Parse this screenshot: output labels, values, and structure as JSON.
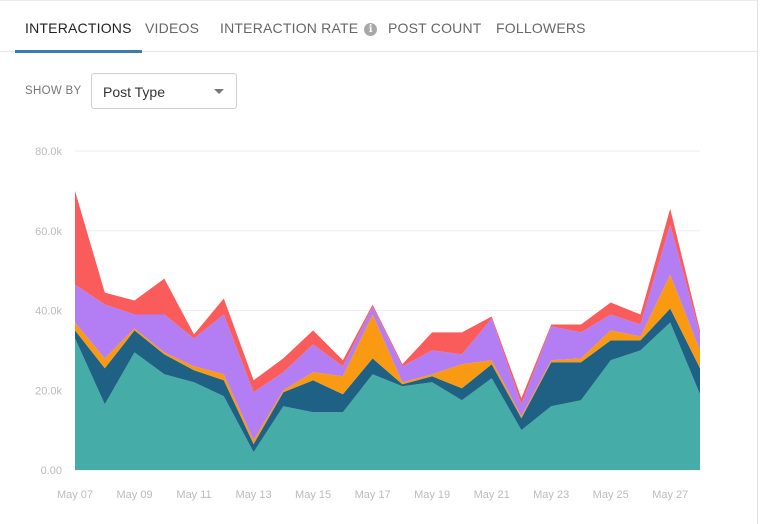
{
  "tabs": [
    {
      "label": "INTERACTIONS",
      "active": true
    },
    {
      "label": "VIDEOS",
      "active": false
    },
    {
      "label": "INTERACTION RATE",
      "active": false,
      "has_info_icon": true
    },
    {
      "label": "POST COUNT",
      "active": false
    },
    {
      "label": "FOLLOWERS",
      "active": false
    }
  ],
  "info_icon": "info-icon",
  "show_by": {
    "label": "SHOW BY",
    "selected": "Post Type"
  },
  "chart_data": {
    "type": "area",
    "stacked": true,
    "ylim": [
      0,
      80000
    ],
    "y_ticks": [
      "0.00",
      "20.0k",
      "40.0k",
      "60.0k",
      "80.0k"
    ],
    "x_tick_labels": [
      "May 07",
      "May 09",
      "May 11",
      "May 13",
      "May 15",
      "May 17",
      "May 19",
      "May 21",
      "May 23",
      "May 25",
      "May 27"
    ],
    "grid": true,
    "x": [
      "May 07",
      "May 08",
      "May 09",
      "May 10",
      "May 11",
      "May 12",
      "May 13",
      "May 14",
      "May 15",
      "May 16",
      "May 17",
      "May 18",
      "May 19",
      "May 20",
      "May 21",
      "May 22",
      "May 23",
      "May 24",
      "May 25",
      "May 26",
      "May 27",
      "May 28"
    ],
    "series": [
      {
        "color": "#45aca8",
        "values": [
          33000,
          16500,
          29500,
          24000,
          22000,
          18500,
          4500,
          16000,
          14500,
          14500,
          24000,
          21000,
          22000,
          17500,
          23000,
          10000,
          16000,
          17500,
          27500,
          30000,
          37000,
          19000
        ]
      },
      {
        "color": "#1f6185",
        "values": [
          2000,
          9000,
          5500,
          5000,
          3000,
          4000,
          2000,
          3500,
          8000,
          4500,
          4000,
          500,
          1500,
          3000,
          3500,
          3000,
          11000,
          9500,
          5000,
          2500,
          3500,
          6500
        ]
      },
      {
        "color": "#f99a12",
        "values": [
          2000,
          2500,
          500,
          500,
          1000,
          1500,
          1000,
          500,
          2000,
          4500,
          11000,
          500,
          500,
          6000,
          1000,
          500,
          500,
          1000,
          2500,
          1000,
          8500,
          4500
        ]
      },
      {
        "color": "#b37ef3",
        "values": [
          9500,
          13500,
          3500,
          9500,
          7000,
          15000,
          12000,
          4500,
          7000,
          2500,
          2000,
          4000,
          6000,
          2500,
          10500,
          3000,
          8500,
          6500,
          4000,
          3000,
          12500,
          4000
        ]
      },
      {
        "color": "#fa5c5c",
        "values": [
          23500,
          3000,
          3500,
          9000,
          1000,
          4000,
          3000,
          3500,
          3500,
          1500,
          500,
          500,
          4500,
          5500,
          500,
          1500,
          500,
          2000,
          3000,
          2500,
          4000,
          1000
        ]
      }
    ]
  }
}
